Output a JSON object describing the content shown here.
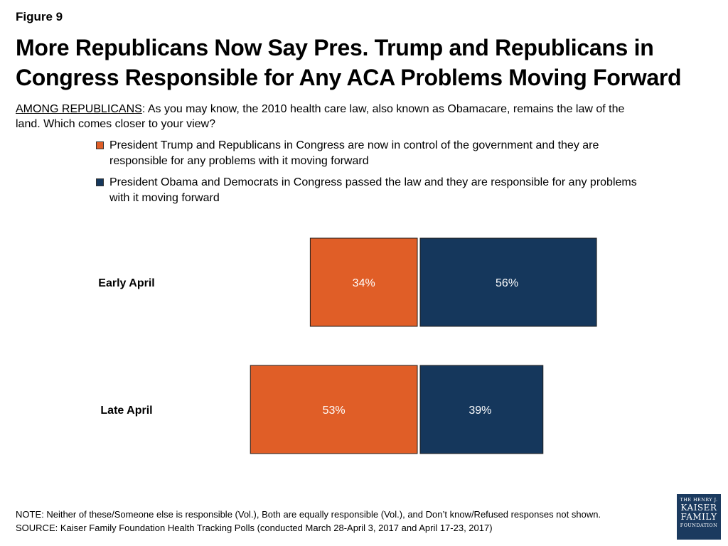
{
  "figure_label": "Figure 9",
  "title": "More Republicans Now Say Pres. Trump and Republicans in Congress Responsible for Any ACA Problems Moving Forward",
  "question_prefix": "AMONG REPUBLICANS",
  "question_text": ": As you may know, the 2010 health care law, also known as Obamacare, remains the law of the land. Which comes closer to your view?",
  "note": "NOTE: Neither of these/Someone else is responsible (Vol.), Both are equally responsible (Vol.), and Don’t know/Refused responses not shown.",
  "source": "SOURCE: Kaiser Family Foundation Health Tracking Polls (conducted March 28-April 3, 2017 and April 17-23, 2017)",
  "logo": {
    "line1": "THE HENRY J.",
    "line2": "KAISER",
    "line3": "FAMILY",
    "line4": "FOUNDATION"
  },
  "colors": {
    "trump": "#e05e27",
    "obama": "#15375c"
  },
  "chart_data": {
    "type": "bar",
    "orientation": "horizontal-diverging",
    "categories": [
      "Early April",
      "Late April"
    ],
    "series": [
      {
        "name": "President Trump and Republicans in Congress are now in control of the government and they are responsible for any problems with it moving forward",
        "color": "#e05e27",
        "values": [
          34,
          53
        ],
        "labels": [
          "34%",
          "53%"
        ]
      },
      {
        "name": "President Obama and Democrats in Congress passed the law and they are responsible for any problems with it moving forward",
        "color": "#15375c",
        "values": [
          56,
          39
        ],
        "labels": [
          "56%",
          "39%"
        ]
      }
    ],
    "legend_position": "top",
    "grid": false
  }
}
